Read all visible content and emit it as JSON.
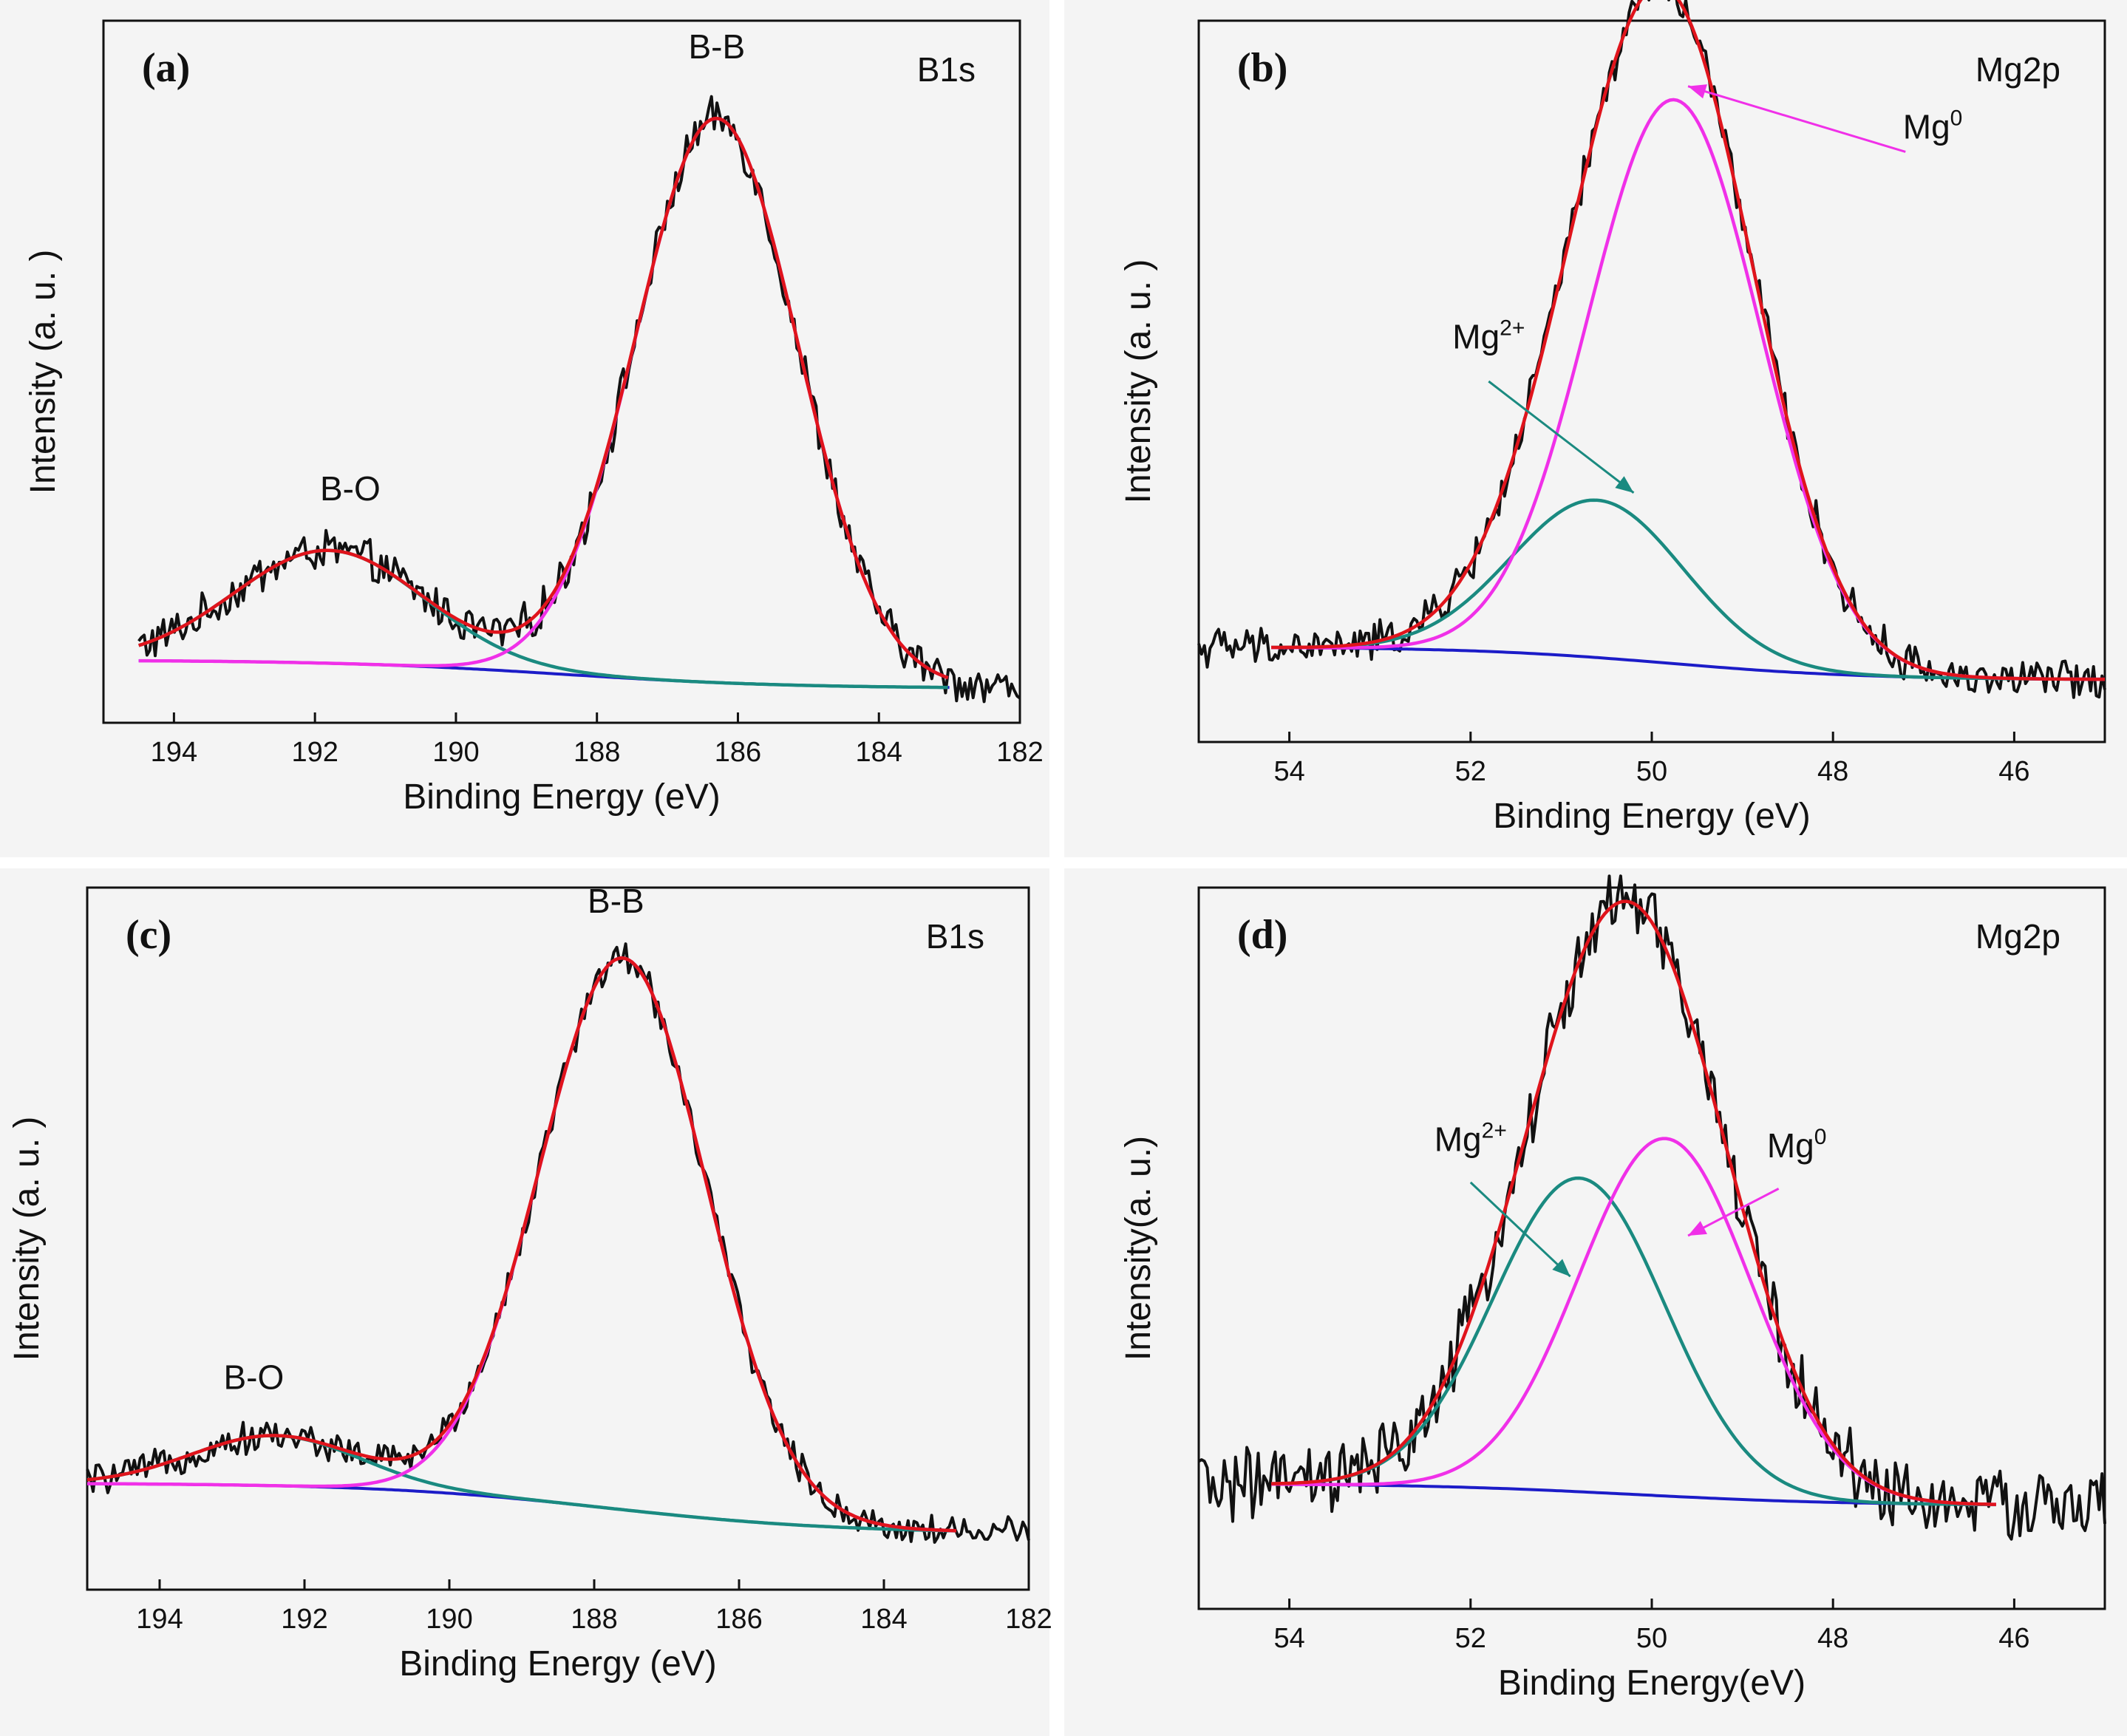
{
  "figure": {
    "colors": {
      "raw": "#111111",
      "envelope": "#e0141c",
      "main_peak": "#f030e8",
      "second_peak": "#1a8a80",
      "background": "#1c1cc8",
      "arrow_mg0": "#f030e8",
      "arrow_mg2": "#1a8a80"
    }
  },
  "chart_data": [
    {
      "id": "a",
      "type": "line",
      "panel_label": "(a)",
      "title": "B1s",
      "xlabel": "Binding Energy (eV)",
      "ylabel": "Intensity (a. u. )",
      "xlim": [
        195,
        182
      ],
      "xticks": [
        194,
        192,
        190,
        188,
        186,
        184,
        182
      ],
      "ylim": [
        0,
        1.12
      ],
      "x_range": [
        194.5,
        182
      ],
      "fit_range": [
        194.5,
        183
      ],
      "noise": 0.028,
      "background": {
        "start": 0.1,
        "end": 0.055,
        "center": 188.5,
        "width": 1.6
      },
      "components": [
        {
          "name": "B-O",
          "center": 191.8,
          "amplitude": 0.18,
          "sigma": 1.35,
          "color_key": "second_peak"
        },
        {
          "name": "B-B",
          "center": 186.3,
          "amplitude": 0.9,
          "sigma": 1.15,
          "color_key": "main_peak"
        }
      ],
      "annotations": [
        {
          "text": "B-O",
          "x": 191.5,
          "y": 0.355
        },
        {
          "text": "B-B",
          "x": 186.3,
          "y": 1.06
        }
      ],
      "arrows": []
    },
    {
      "id": "b",
      "type": "line",
      "panel_label": "(b)",
      "title": "Mg2p",
      "xlabel": "Binding Energy (eV)",
      "ylabel": "Intensity (a. u. )",
      "xlim": [
        55,
        45
      ],
      "xticks": [
        54,
        52,
        50,
        48,
        46
      ],
      "ylim": [
        0,
        1.1
      ],
      "x_range": [
        55,
        45
      ],
      "fit_range": [
        54.2,
        45
      ],
      "noise": 0.026,
      "background": {
        "start": 0.145,
        "end": 0.095,
        "center": 49.8,
        "width": 1.1
      },
      "components": [
        {
          "name": "Mg2+",
          "center": 50.6,
          "amplitude": 0.24,
          "sigma": 0.95,
          "color_key": "second_peak"
        },
        {
          "name": "Mg0",
          "center": 49.75,
          "amplitude": 0.86,
          "sigma": 0.95,
          "color_key": "main_peak"
        }
      ],
      "annotations": [
        {
          "text": "Mg",
          "sup": "2+",
          "x": 51.8,
          "y": 0.6
        },
        {
          "text": "Mg",
          "sup": "0",
          "x": 46.9,
          "y": 0.92
        }
      ],
      "arrows": [
        {
          "from": [
            51.8,
            0.55
          ],
          "to": [
            50.2,
            0.38
          ],
          "color_key": "arrow_mg2"
        },
        {
          "from": [
            47.2,
            0.9
          ],
          "to": [
            49.6,
            1.0
          ],
          "color_key": "arrow_mg0"
        }
      ]
    },
    {
      "id": "c",
      "type": "line",
      "panel_label": "(c)",
      "title": "B1s",
      "xlabel": "Binding Energy (eV)",
      "ylabel": "Intensity (a. u. )",
      "xlim": [
        195,
        182
      ],
      "xticks": [
        194,
        192,
        190,
        188,
        186,
        184,
        182
      ],
      "ylim": [
        0,
        1.12
      ],
      "x_range": [
        195,
        182
      ],
      "fit_range": [
        195,
        183
      ],
      "noise": 0.022,
      "background": {
        "start": 0.17,
        "end": 0.09,
        "center": 187.8,
        "width": 1.6
      },
      "components": [
        {
          "name": "B-O",
          "center": 192.4,
          "amplitude": 0.08,
          "sigma": 1.15,
          "color_key": "second_peak"
        },
        {
          "name": "B-B",
          "center": 187.6,
          "amplitude": 0.88,
          "sigma": 1.15,
          "color_key": "main_peak"
        }
      ],
      "annotations": [
        {
          "text": "B-O",
          "x": 192.7,
          "y": 0.32
        },
        {
          "text": "B-B",
          "x": 187.7,
          "y": 1.08
        }
      ],
      "arrows": []
    },
    {
      "id": "d",
      "type": "line",
      "panel_label": "(d)",
      "title": "Mg2p",
      "xlabel": "Binding Energy(eV)",
      "ylabel": "Intensity(a. u.)",
      "xlim": [
        55,
        45
      ],
      "xticks": [
        54,
        52,
        50,
        48,
        46
      ],
      "ylim": [
        0,
        1.15
      ],
      "x_range": [
        55,
        45
      ],
      "fit_range": [
        54.2,
        46.2
      ],
      "noise": 0.05,
      "background": {
        "start": 0.2,
        "end": 0.165,
        "center": 50.2,
        "width": 1.2
      },
      "components": [
        {
          "name": "Mg2+",
          "center": 50.8,
          "amplitude": 0.5,
          "sigma": 0.95,
          "color_key": "second_peak"
        },
        {
          "name": "Mg0",
          "center": 49.85,
          "amplitude": 0.57,
          "sigma": 0.95,
          "color_key": "main_peak"
        }
      ],
      "annotations": [
        {
          "text": "Mg",
          "sup": "2+",
          "x": 52.0,
          "y": 0.73
        },
        {
          "text": "Mg",
          "sup": "0",
          "x": 48.4,
          "y": 0.72
        }
      ],
      "arrows": [
        {
          "from": [
            52.0,
            0.68
          ],
          "to": [
            50.9,
            0.53
          ],
          "color_key": "arrow_mg2"
        },
        {
          "from": [
            48.6,
            0.67
          ],
          "to": [
            49.6,
            0.595
          ],
          "color_key": "arrow_mg0"
        }
      ]
    }
  ]
}
